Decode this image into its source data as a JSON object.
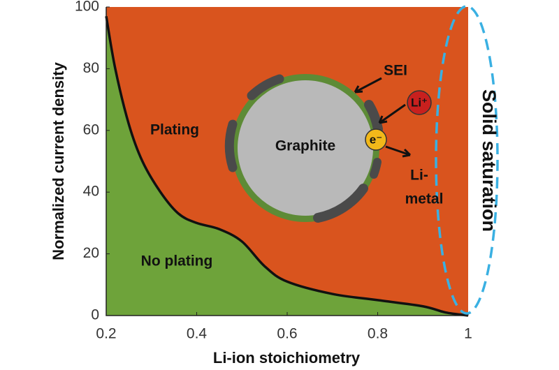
{
  "chart_data": {
    "type": "area",
    "x_label": "Li-ion stoichiometry",
    "y_label": "Normalized current density",
    "x": [
      0.2,
      0.22,
      0.25,
      0.28,
      0.32,
      0.36,
      0.4,
      0.45,
      0.5,
      0.55,
      0.6,
      0.7,
      0.8,
      0.9,
      0.95,
      1.0
    ],
    "values": [
      97,
      80,
      62,
      50,
      40,
      33,
      30,
      28,
      24,
      16,
      11,
      7,
      5,
      3,
      1,
      0
    ],
    "xlim": [
      0.2,
      1
    ],
    "ylim": [
      0,
      100
    ],
    "xticks": [
      0.2,
      0.4,
      0.6,
      0.8,
      1
    ],
    "yticks": [
      0,
      20,
      40,
      60,
      80,
      100
    ],
    "colors": {
      "above": "#d9541e",
      "below": "#6ea33a",
      "line": "#111111"
    },
    "annotations": {
      "above": "Plating",
      "below": "No plating",
      "particle": "Graphite",
      "sei": "SEI",
      "ion": "Li⁺",
      "electron": "e⁻",
      "metal": [
        "Li-",
        "metal"
      ],
      "side": "Solid saturation"
    }
  }
}
